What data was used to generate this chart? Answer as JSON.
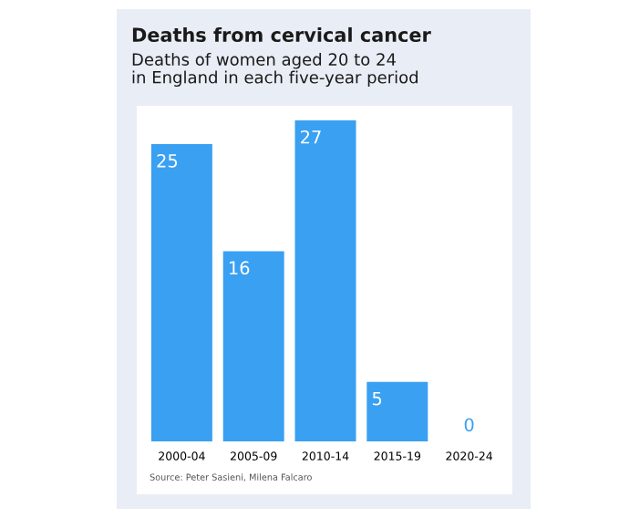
{
  "chart_data": {
    "type": "bar",
    "title": "Deaths from cervical cancer",
    "subtitle": "Deaths of women aged 20 to 24\nin England in each five-year period",
    "categories": [
      "2000-04",
      "2005-09",
      "2010-14",
      "2015-19",
      "2020-24"
    ],
    "values": [
      25,
      16,
      27,
      5,
      0
    ],
    "color": "#3aa0f2",
    "data_labels": true,
    "grid": false,
    "annotations": [
      "Source: Peter Sasieni, Milena Falcaro"
    ]
  }
}
